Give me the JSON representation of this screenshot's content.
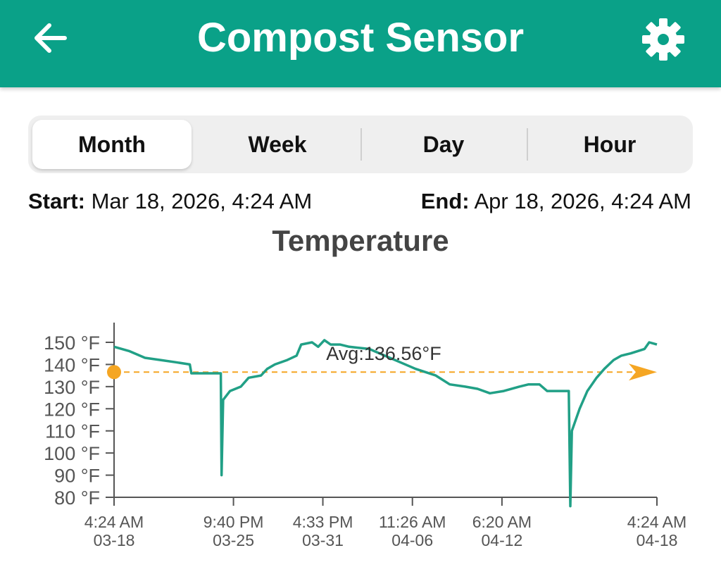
{
  "header": {
    "title": "Compost Sensor",
    "back_icon": "arrow-left-icon",
    "settings_icon": "gear-icon",
    "color": "#0aa188"
  },
  "tabs": [
    {
      "label": "Month",
      "active": true
    },
    {
      "label": "Week",
      "active": false
    },
    {
      "label": "Day",
      "active": false
    },
    {
      "label": "Hour",
      "active": false
    }
  ],
  "range": {
    "start_label": "Start:",
    "start_value": "Mar 18, 2026, 4:24 AM",
    "end_label": "End:",
    "end_value": "Apr 18, 2026, 4:24 AM"
  },
  "chart_data": {
    "type": "line",
    "title": "Temperature",
    "ylim": [
      80,
      150
    ],
    "y_ticks": [
      "80 °F",
      "90 °F",
      "100 °F",
      "110 °F",
      "120 °F",
      "130 °F",
      "140 °F",
      "150 °F"
    ],
    "x_ticks": [
      {
        "time": "4:24 AM",
        "date": "03-18"
      },
      {
        "time": "9:40 PM",
        "date": "03-25"
      },
      {
        "time": "4:33 PM",
        "date": "03-31"
      },
      {
        "time": "11:26 AM",
        "date": "04-06"
      },
      {
        "time": "6:20 AM",
        "date": "04-12"
      },
      {
        "time": "4:24 AM",
        "date": "04-18"
      }
    ],
    "average": {
      "label": "Avg:136.56°F",
      "value": 136.56
    },
    "colors": {
      "line": "#21a086",
      "average": "#f5a623",
      "axis": "#555555"
    },
    "x_unit": "days since 03-18 4:24 AM",
    "series": [
      {
        "values": [
          [
            0,
            148
          ],
          [
            1,
            146
          ],
          [
            2,
            143
          ],
          [
            3,
            142
          ],
          [
            4,
            141
          ],
          [
            4.9,
            140
          ],
          [
            5,
            136
          ],
          [
            6.8,
            136
          ],
          [
            6.9,
            136
          ],
          [
            6.95,
            90
          ],
          [
            7.05,
            124
          ],
          [
            7.5,
            128
          ],
          [
            8.2,
            130
          ],
          [
            8.7,
            134
          ],
          [
            9.5,
            135
          ],
          [
            9.9,
            138
          ],
          [
            10.4,
            140
          ],
          [
            11.2,
            142
          ],
          [
            11.8,
            144
          ],
          [
            12.1,
            149
          ],
          [
            12.8,
            150
          ],
          [
            13.2,
            148
          ],
          [
            13.6,
            151
          ],
          [
            14,
            149
          ],
          [
            14.6,
            149
          ],
          [
            15.2,
            148
          ],
          [
            16.5,
            147
          ],
          [
            17.5,
            144
          ],
          [
            18.5,
            141
          ],
          [
            19.5,
            138
          ],
          [
            20.8,
            135
          ],
          [
            21.7,
            131
          ],
          [
            22.7,
            130
          ],
          [
            23.5,
            129
          ],
          [
            24.3,
            127
          ],
          [
            25.2,
            128
          ],
          [
            26.2,
            130
          ],
          [
            26.8,
            131
          ],
          [
            27.5,
            131
          ],
          [
            28,
            128
          ],
          [
            28.8,
            128
          ],
          [
            29.4,
            128
          ],
          [
            29.5,
            76
          ],
          [
            29.6,
            110
          ],
          [
            30.1,
            120
          ],
          [
            30.6,
            128
          ],
          [
            31.2,
            134
          ],
          [
            31.7,
            138
          ],
          [
            32.3,
            142
          ],
          [
            32.8,
            144
          ],
          [
            33.4,
            145
          ],
          [
            34.3,
            147
          ],
          [
            34.6,
            150
          ],
          [
            35.1,
            149
          ]
        ]
      }
    ]
  }
}
